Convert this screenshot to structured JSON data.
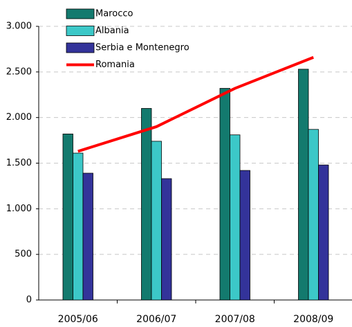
{
  "chart_data": {
    "type": "bar",
    "categories": [
      "2005/06",
      "2006/07",
      "2007/08",
      "2008/09"
    ],
    "series": [
      {
        "name": "Marocco",
        "color": "#137a6e",
        "type": "bar",
        "values": [
          1820,
          2100,
          2320,
          2530
        ]
      },
      {
        "name": "Albania",
        "color": "#3cc8c8",
        "type": "bar",
        "values": [
          1610,
          1740,
          1810,
          1870
        ]
      },
      {
        "name": "Serbia e Montenegro",
        "color": "#33339a",
        "type": "bar",
        "values": [
          1390,
          1330,
          1420,
          1480
        ]
      },
      {
        "name": "Romania",
        "color": "#ff0000",
        "type": "line",
        "values": [
          1630,
          1900,
          2320,
          2660
        ]
      }
    ],
    "ylim": [
      0,
      3000
    ],
    "yticks": [
      0,
      500,
      {
        "value": 1000,
        "label": "1.000"
      },
      {
        "value": 1500,
        "label": "1.500"
      },
      {
        "value": 2000,
        "label": "2.000"
      },
      {
        "value": 2500,
        "label": "2.500"
      },
      {
        "value": 3000,
        "label": "3.000"
      }
    ],
    "grid": true,
    "legend": "top-left"
  }
}
